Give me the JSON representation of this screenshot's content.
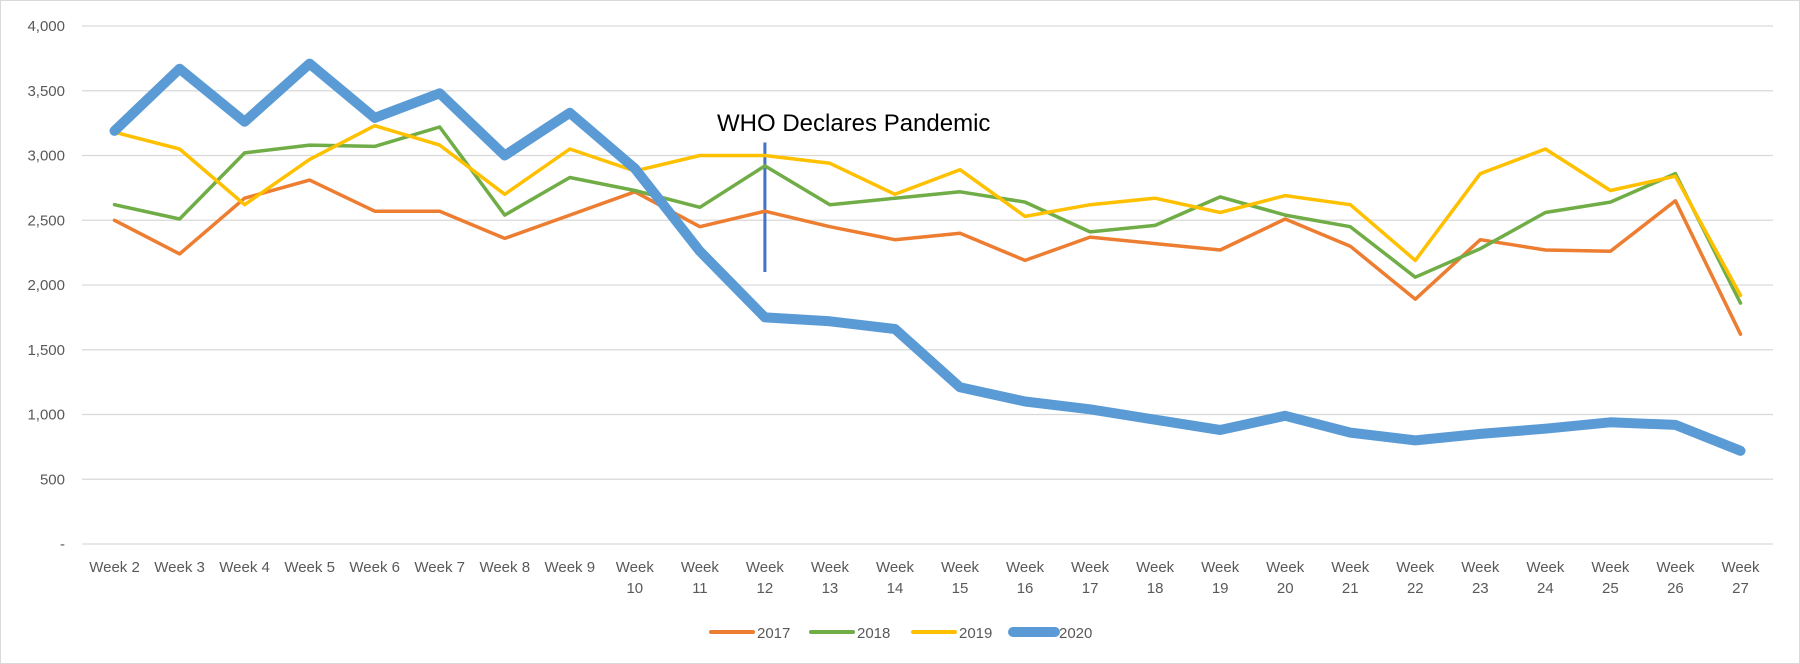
{
  "chart_data": {
    "type": "line",
    "categories": [
      "Week 2",
      "Week 3",
      "Week 4",
      "Week 5",
      "Week 6",
      "Week 7",
      "Week 8",
      "Week 9",
      "Week 10",
      "Week 11",
      "Week 12",
      "Week 13",
      "Week 14",
      "Week 15",
      "Week 16",
      "Week 17",
      "Week 18",
      "Week 19",
      "Week 20",
      "Week 21",
      "Week 22",
      "Week 23",
      "Week 24",
      "Week 25",
      "Week 26",
      "Week 27"
    ],
    "ylim": [
      0,
      4000
    ],
    "yticks": [
      0,
      500,
      1000,
      1500,
      2000,
      2500,
      3000,
      3500,
      4000
    ],
    "ytick_labels": [
      "-",
      "500",
      "1,000",
      "1,500",
      "2,000",
      "2,500",
      "3,000",
      "3,500",
      "4,000"
    ],
    "grid": true,
    "legend_position": "bottom",
    "annotation": {
      "text": "WHO Declares Pandemic",
      "category": "Week 12",
      "y_from": 2100,
      "y_to": 3100,
      "color": "#4472C4"
    },
    "series": [
      {
        "name": "2017",
        "color": "#ED7D31",
        "values": [
          2500,
          2240,
          2670,
          2810,
          2570,
          2570,
          2360,
          2540,
          2720,
          2450,
          2570,
          2450,
          2350,
          2400,
          2190,
          2370,
          2320,
          2270,
          2510,
          2300,
          1890,
          2350,
          2270,
          2260,
          2650,
          1620
        ]
      },
      {
        "name": "2018",
        "color": "#70AD47",
        "values": [
          2620,
          2510,
          3020,
          3080,
          3070,
          3220,
          2540,
          2830,
          2730,
          2600,
          2920,
          2620,
          2670,
          2720,
          2640,
          2410,
          2460,
          2680,
          2540,
          2450,
          2060,
          2280,
          2560,
          2640,
          2860,
          1860
        ]
      },
      {
        "name": "2019",
        "color": "#FFC000",
        "values": [
          3180,
          3050,
          2620,
          2970,
          3230,
          3080,
          2700,
          3050,
          2880,
          3000,
          3000,
          2940,
          2700,
          2890,
          2530,
          2620,
          2670,
          2560,
          2690,
          2620,
          2190,
          2860,
          3050,
          2730,
          2840,
          1920
        ]
      },
      {
        "name": "2020",
        "color": "#5B9BD5",
        "values": [
          3190,
          3670,
          3260,
          3710,
          3290,
          3480,
          3000,
          3330,
          2900,
          2260,
          1750,
          1720,
          1660,
          1210,
          1100,
          1040,
          960,
          880,
          990,
          860,
          800,
          850,
          890,
          940,
          920,
          720
        ]
      }
    ]
  }
}
